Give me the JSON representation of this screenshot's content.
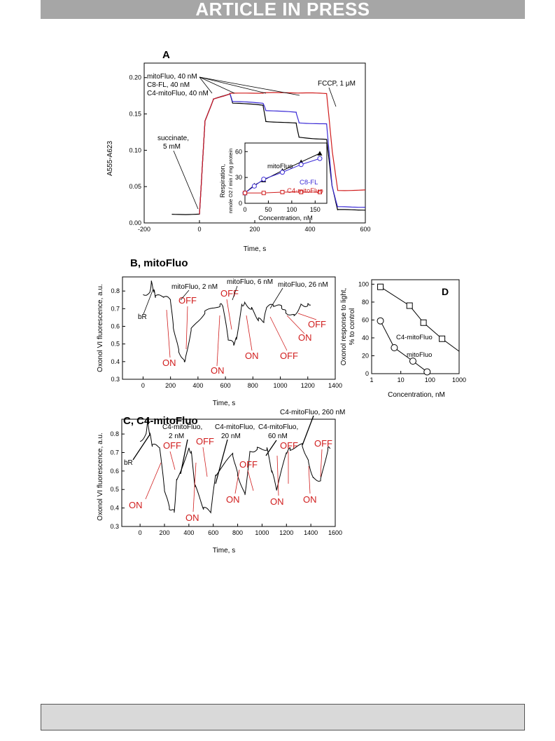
{
  "header": {
    "banner": "ARTICLE IN PRESS"
  },
  "colors": {
    "black": "#000000",
    "blue": "#3b2bd6",
    "red": "#d01c1c",
    "banner": "#a6a6a6"
  },
  "panelA": {
    "label": "A",
    "ylabel": "A555-A623",
    "xlabel": "Time, s",
    "xticks": [
      "-200",
      "0",
      "200",
      "400",
      "600"
    ],
    "yticks": [
      "0.00",
      "0.05",
      "0.10",
      "0.15",
      "0.20"
    ],
    "legend": [
      "mitoFluo, 40 nM",
      "C8-FL, 40 nM",
      "C4-mitoFluo, 40 nM"
    ],
    "ann_fccp": "FCCP, 1 μM",
    "ann_succ1": "succinate,",
    "ann_succ2": "5 mM",
    "inset": {
      "ylabel1": "Respiration,",
      "ylabel2": "nmole O2 / min / mg protein",
      "xlabel": "Concentration, nM",
      "xticks": [
        "0",
        "50",
        "100",
        "150"
      ],
      "yticks": [
        "0",
        "30",
        "60"
      ],
      "lab_mito": "mitoFluo",
      "lab_c8": "C8-FL",
      "lab_c4": "C4-mitoFluo"
    }
  },
  "panelB": {
    "label": "B, mitoFluo",
    "ylabel": "Oxonol VI fluorescence, a.u.",
    "xlabel": "Time, s",
    "xticks": [
      "0",
      "200",
      "400",
      "600",
      "800",
      "1000",
      "1200",
      "1400"
    ],
    "yticks": [
      "0.3",
      "0.4",
      "0.5",
      "0.6",
      "0.7",
      "0.8"
    ],
    "ann": [
      "mitoFluo, 2 nM",
      "mitoFluo, 6 nM",
      "mitoFluo, 26 nM",
      "bR"
    ],
    "on": "ON",
    "off": "OFF"
  },
  "panelC": {
    "label": "C, C4-mitoFluo",
    "ylabel": "Oxonol VI fluorescence, a.u.",
    "xlabel": "Time, s",
    "xticks": [
      "0",
      "200",
      "400",
      "600",
      "800",
      "1000",
      "1200",
      "1400",
      "1600"
    ],
    "yticks": [
      "0.3",
      "0.4",
      "0.5",
      "0.6",
      "0.7",
      "0.8"
    ],
    "ann_a1": "C4-mitoFluo,",
    "ann_a2": "2 nM",
    "ann_b1": "C4-mitoFluo,",
    "ann_b2": "20 nM",
    "ann_c1": "C4-mitoFluo,",
    "ann_c2": "60 nM",
    "ann_d": "C4-mitoFluo, 260 nM",
    "bR": "bR",
    "on": "ON",
    "off": "OFF"
  },
  "panelD": {
    "label": "D",
    "ylabel1": "Oxonol response to light,",
    "ylabel2": "% to control",
    "xlabel": "Concentration, nM",
    "xticks": [
      "1",
      "10",
      "100",
      "1000"
    ],
    "yticks": [
      "0",
      "20",
      "40",
      "60",
      "80",
      "100"
    ],
    "lab_c4": "C4-mitoFluo",
    "lab_mito": "mitoFluo"
  },
  "chart_data": [
    {
      "type": "line",
      "title": "A",
      "xlabel": "Time, s",
      "ylabel": "A555-A623",
      "xlim": [
        -200,
        600
      ],
      "ylim": [
        0,
        0.22
      ],
      "series": [
        {
          "name": "mitoFluo, 40 nM",
          "x": [
            -100,
            0,
            20,
            50,
            110,
            120,
            230,
            240,
            350,
            360,
            460,
            480,
            500,
            600
          ],
          "y": [
            0.012,
            0.012,
            0.14,
            0.17,
            0.178,
            0.165,
            0.162,
            0.14,
            0.137,
            0.118,
            0.115,
            0.05,
            0.018,
            0.018
          ]
        },
        {
          "name": "C8-FL, 40 nM",
          "x": [
            0,
            20,
            50,
            110,
            120,
            230,
            240,
            350,
            360,
            460,
            480,
            500,
            600
          ],
          "y": [
            0.012,
            0.14,
            0.17,
            0.178,
            0.167,
            0.165,
            0.155,
            0.152,
            0.138,
            0.136,
            0.05,
            0.022,
            0.022
          ]
        },
        {
          "name": "C4-mitoFluo, 40 nM",
          "x": [
            0,
            20,
            50,
            110,
            230,
            360,
            460,
            480,
            500,
            600
          ],
          "y": [
            0.012,
            0.14,
            0.17,
            0.178,
            0.179,
            0.179,
            0.178,
            0.1,
            0.045,
            0.045
          ]
        }
      ]
    },
    {
      "type": "scatter",
      "title": "A inset",
      "xlabel": "Concentration, nM",
      "ylabel": "Respiration, nmole O2 / min / mg protein",
      "xlim": [
        0,
        175
      ],
      "ylim": [
        0,
        70
      ],
      "series": [
        {
          "name": "mitoFluo",
          "x": [
            0,
            20,
            40,
            80,
            120,
            160
          ],
          "y": [
            12,
            21,
            27,
            38,
            48,
            58
          ]
        },
        {
          "name": "C8-FL",
          "x": [
            0,
            20,
            40,
            80,
            120,
            160
          ],
          "y": [
            12,
            20,
            28,
            36,
            45,
            52
          ]
        },
        {
          "name": "C4-mitoFluo",
          "x": [
            0,
            40,
            80,
            120,
            160
          ],
          "y": [
            12,
            12,
            13,
            13,
            13
          ]
        }
      ]
    },
    {
      "type": "line",
      "title": "B, mitoFluo",
      "xlabel": "Time, s",
      "ylabel": "Oxonol VI fluorescence, a.u.",
      "xlim": [
        -150,
        1400
      ],
      "ylim": [
        0.3,
        0.88
      ],
      "series": [
        {
          "x": [
            0,
            50,
            60,
            80,
            90,
            150,
            200,
            220,
            260,
            300,
            310,
            350,
            450,
            560,
            580,
            620,
            660,
            680,
            720,
            740,
            790,
            840,
            880,
            900,
            950,
            1010,
            1040,
            1100,
            1150,
            1200,
            1220
          ],
          "y": [
            0.78,
            0.79,
            0.85,
            0.8,
            0.77,
            0.77,
            0.75,
            0.6,
            0.46,
            0.4,
            0.42,
            0.58,
            0.68,
            0.72,
            0.72,
            0.53,
            0.5,
            0.53,
            0.72,
            0.73,
            0.7,
            0.64,
            0.63,
            0.71,
            0.72,
            0.71,
            0.68,
            0.66,
            0.72,
            0.72,
            0.73
          ]
        }
      ]
    },
    {
      "type": "line",
      "title": "C, C4-mitoFluo",
      "xlabel": "Time, s",
      "ylabel": "Oxonol VI fluorescence, a.u.",
      "xlim": [
        -150,
        1600
      ],
      "ylim": [
        0.3,
        0.88
      ],
      "series": [
        {
          "x": [
            0,
            50,
            60,
            80,
            100,
            160,
            200,
            240,
            280,
            300,
            400,
            420,
            450,
            520,
            580,
            620,
            760,
            800,
            860,
            900,
            960,
            1040,
            1080,
            1120,
            1200,
            1230,
            1330,
            1380,
            1420,
            1480,
            1540,
            1560
          ],
          "y": [
            0.76,
            0.8,
            0.87,
            0.8,
            0.74,
            0.73,
            0.5,
            0.4,
            0.38,
            0.55,
            0.72,
            0.7,
            0.52,
            0.4,
            0.38,
            0.58,
            0.69,
            0.58,
            0.47,
            0.7,
            0.72,
            0.72,
            0.6,
            0.5,
            0.7,
            0.72,
            0.74,
            0.65,
            0.56,
            0.55,
            0.72,
            0.73
          ]
        }
      ]
    },
    {
      "type": "scatter",
      "title": "D",
      "xlabel": "Concentration, nM",
      "ylabel": "Oxonol response to light, % to control",
      "xlim": [
        1,
        1000
      ],
      "ylim": [
        0,
        105
      ],
      "series": [
        {
          "name": "C4-mitoFluo",
          "x": [
            2,
            20,
            60,
            260,
            1000
          ],
          "y": [
            97,
            76,
            57,
            39,
            25
          ]
        },
        {
          "name": "mitoFluo",
          "x": [
            2,
            6,
            26,
            80
          ],
          "y": [
            59,
            29,
            14,
            2
          ]
        }
      ]
    }
  ]
}
